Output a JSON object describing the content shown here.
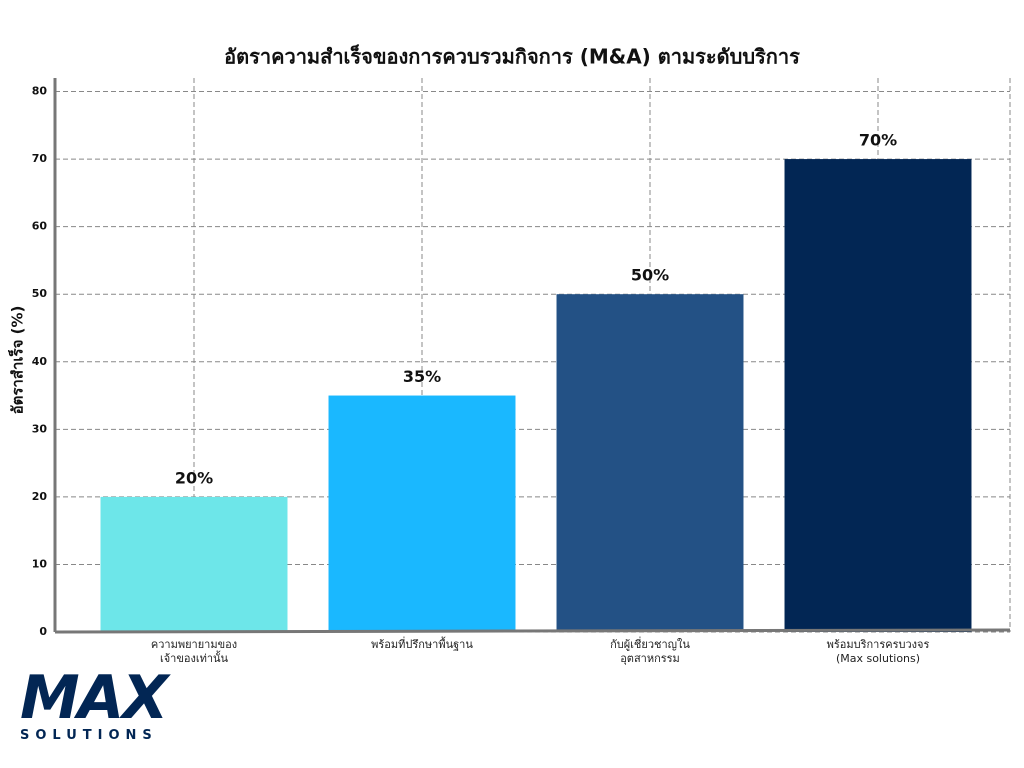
{
  "chart_data": {
    "type": "bar",
    "title": "อัตราความสำเร็จของการควบรวมกิจการ (M&A) ตามระดับบริการ",
    "y_label": "อัตราสำเร็จ (%)",
    "categories": [
      "ความพยายามของ\nเจ้าของเท่านั้น",
      "พร้อมที่ปรึกษาพื้นฐาน",
      "กับผู้เชี่ยวชาญใน\nอุตสาหกรรม",
      "พร้อมบริการครบวงจร\n(Max solutions)"
    ],
    "values": [
      20,
      35,
      50,
      70
    ],
    "value_labels": [
      "20%",
      "35%",
      "50%",
      "70%"
    ],
    "colors": [
      "#6de6e9",
      "#1ab8ff",
      "#235185",
      "#022654"
    ],
    "ylim": [
      0,
      82
    ],
    "yticks": [
      0,
      10,
      20,
      30,
      40,
      50,
      60,
      70,
      80
    ],
    "grid": true
  },
  "logo": {
    "text": "MAX",
    "subtext": "SOLUTIONS"
  }
}
